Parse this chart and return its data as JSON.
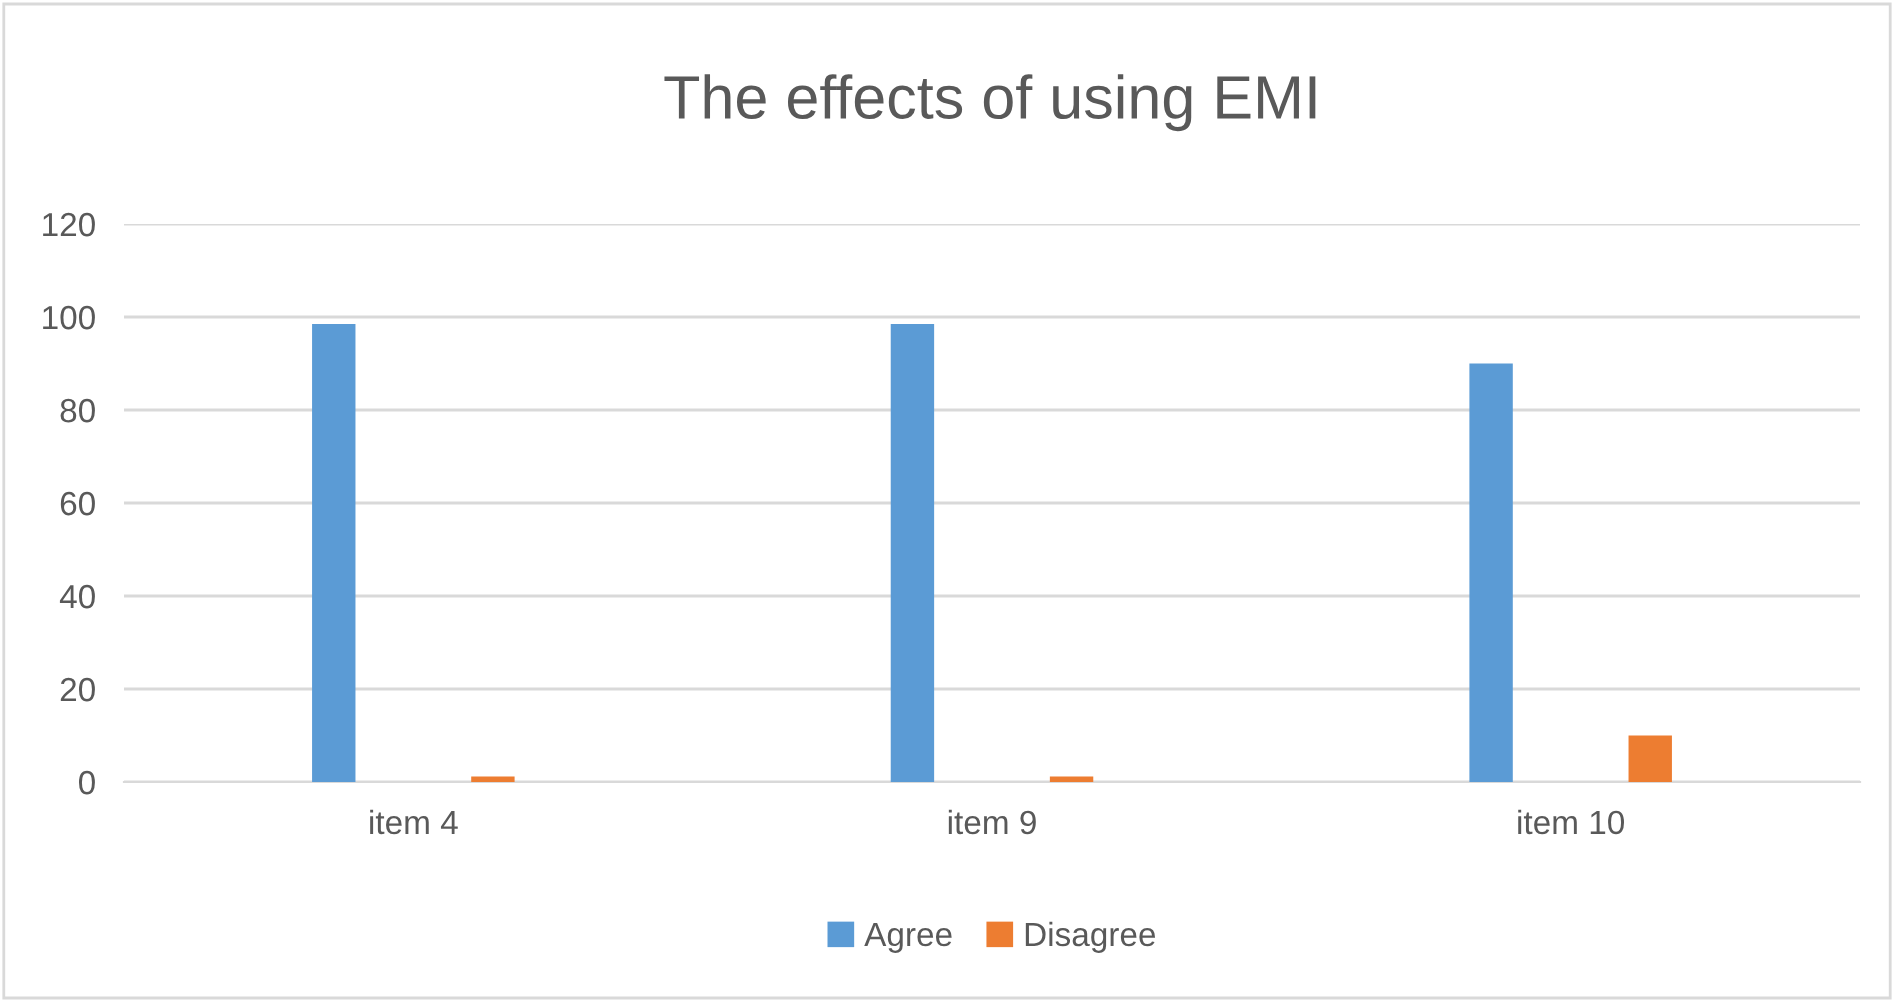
{
  "chart_data": {
    "type": "bar",
    "title": "The effects of using EMI",
    "categories": [
      "item 4",
      "item 9",
      "item 10"
    ],
    "series": [
      {
        "name": "Agree",
        "color": "#5b9bd5",
        "values": [
          98.5,
          98.5,
          90
        ]
      },
      {
        "name": "Disagree",
        "color": "#ed7d31",
        "values": [
          1.2,
          1.2,
          10
        ]
      }
    ],
    "ylim": [
      0,
      120
    ],
    "yticks": [
      0,
      20,
      40,
      60,
      80,
      100,
      120
    ],
    "grid": "y",
    "legend": "bottom"
  }
}
